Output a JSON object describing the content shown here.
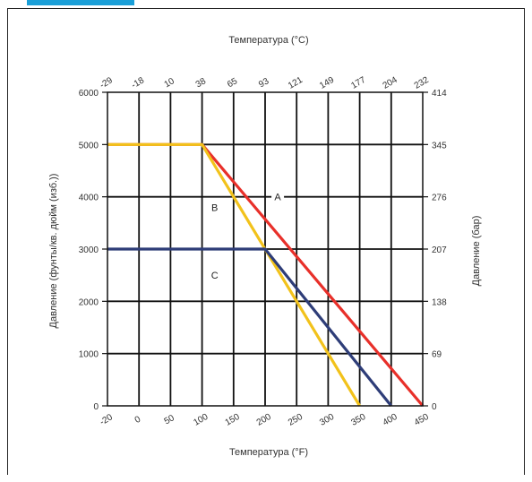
{
  "chart_data": {
    "type": "line",
    "xlabel_bottom": "Температура (°F)",
    "xlabel_top": "Температура (°C)",
    "ylabel_left": "Давление (фунты/кв. дюйм (изб.))",
    "ylabel_right": "Давление (бар)",
    "xlim": [
      -20,
      450
    ],
    "ylim": [
      0,
      6000
    ],
    "x_ticks_bottom": [
      "-20",
      "0",
      "50",
      "100",
      "150",
      "200",
      "250",
      "300",
      "350",
      "400",
      "450"
    ],
    "x_ticks_bottom_values": [
      -20,
      0,
      50,
      100,
      150,
      200,
      250,
      300,
      350,
      400,
      450
    ],
    "x_ticks_top": [
      "-29",
      "-18",
      "10",
      "38",
      "65",
      "93",
      "121",
      "149",
      "177",
      "204",
      "232"
    ],
    "y_ticks_left": [
      "0",
      "1000",
      "2000",
      "3000",
      "4000",
      "5000",
      "6000"
    ],
    "y_ticks_left_values": [
      0,
      1000,
      2000,
      3000,
      4000,
      5000,
      6000
    ],
    "y_ticks_right": [
      "0",
      "69",
      "138",
      "207",
      "276",
      "345",
      "414"
    ],
    "grid": true,
    "series": [
      {
        "color": "#e8302a",
        "x": [
          -20,
          100,
          450
        ],
        "y": [
          5000,
          5000,
          0
        ]
      },
      {
        "color": "#f2c21b",
        "x": [
          -20,
          100,
          350
        ],
        "y": [
          5000,
          5000,
          0
        ]
      },
      {
        "color": "#2e3d78",
        "x": [
          -20,
          200,
          400
        ],
        "y": [
          3000,
          3000,
          0
        ]
      }
    ],
    "annotations": [
      {
        "text": "A",
        "x": 220,
        "y": 4000
      },
      {
        "text": "B",
        "x": 120,
        "y": 3800
      },
      {
        "text": "C",
        "x": 120,
        "y": 2500
      }
    ]
  }
}
